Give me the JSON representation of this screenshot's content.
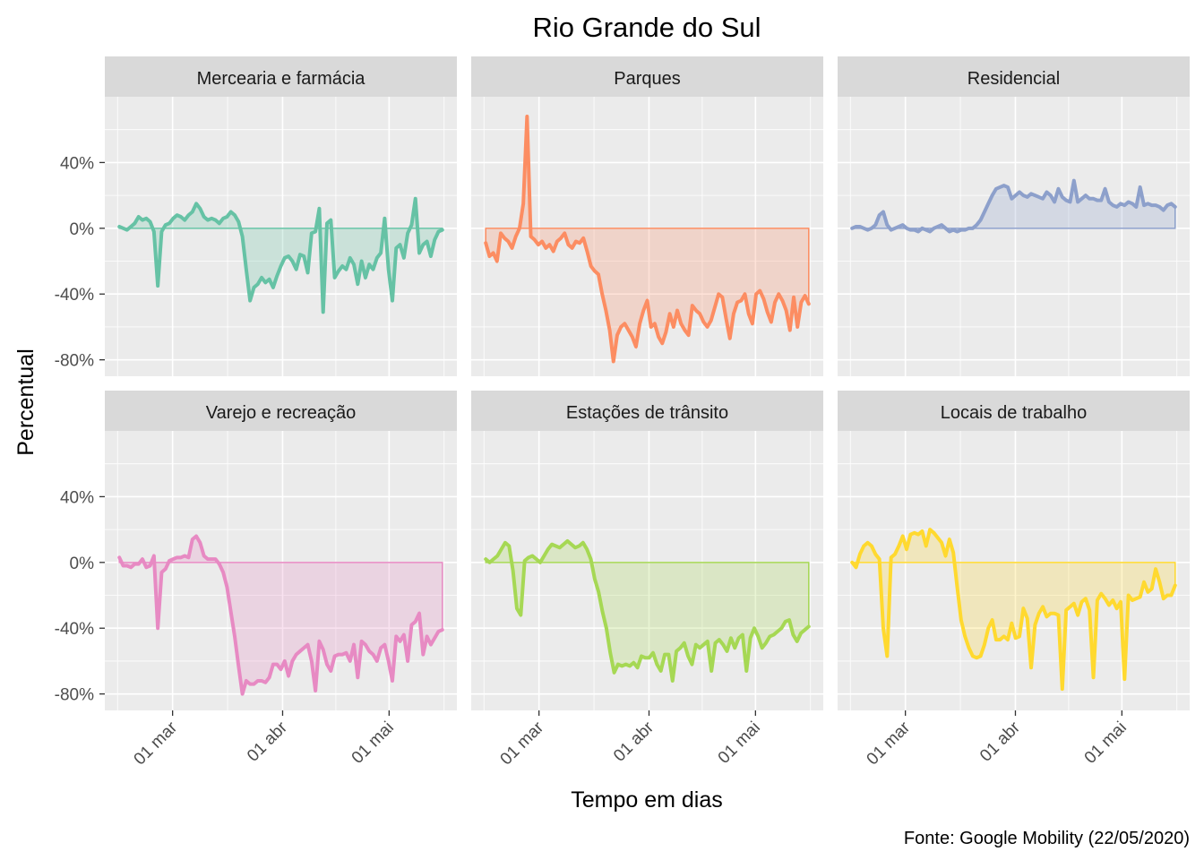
{
  "chart_data": {
    "type": "area",
    "title": "Rio Grande do Sul",
    "xlabel": "Tempo em dias",
    "ylabel": "Percentual",
    "caption": "Fonte: Google Mobility (22/05/2020)",
    "x_start": "2020-02-15",
    "x_end": "2020-05-16",
    "x_tick_labels": [
      "01 mar",
      "01 abr",
      "01 mai"
    ],
    "x_tick_dates": [
      "2020-03-01",
      "2020-04-01",
      "2020-05-01"
    ],
    "ylim": [
      -90,
      80
    ],
    "y_ticks": [
      40,
      0,
      -40,
      -80
    ],
    "y_tick_labels": [
      "40%",
      "0%",
      "-40%",
      "-80%"
    ],
    "grid": true,
    "legend": "none",
    "panels": [
      {
        "name": "Mercearia e farmácia",
        "color": "#66c2a5",
        "values": [
          1,
          0,
          -1,
          1,
          3,
          7,
          5,
          6,
          4,
          -2,
          -35,
          -2,
          2,
          3,
          6,
          8,
          7,
          5,
          8,
          10,
          15,
          12,
          7,
          5,
          6,
          5,
          3,
          6,
          7,
          10,
          8,
          4,
          -5,
          -25,
          -44,
          -36,
          -34,
          -30,
          -33,
          -31,
          -36,
          -29,
          -23,
          -18,
          -17,
          -20,
          -25,
          -16,
          -17,
          -27,
          -3,
          -2,
          12,
          -51,
          3,
          5,
          -30,
          -26,
          -23,
          -25,
          -18,
          -22,
          -34,
          -20,
          -30,
          -22,
          -25,
          -18,
          -15,
          6,
          -25,
          -44,
          -12,
          -10,
          -18,
          -3,
          2,
          18,
          -15,
          -10,
          -8,
          -17,
          -7,
          -2,
          -1
        ]
      },
      {
        "name": "Parques",
        "color": "#fc8d62",
        "values": [
          -9,
          -17,
          -15,
          -20,
          -3,
          -6,
          -8,
          -12,
          -5,
          0,
          15,
          68,
          -5,
          -7,
          -10,
          -8,
          -12,
          -10,
          -14,
          -8,
          -6,
          -3,
          -10,
          -12,
          -8,
          -9,
          -6,
          -14,
          -23,
          -26,
          -28,
          -40,
          -50,
          -62,
          -81,
          -65,
          -60,
          -58,
          -62,
          -66,
          -72,
          -58,
          -50,
          -44,
          -60,
          -58,
          -66,
          -70,
          -63,
          -52,
          -60,
          -50,
          -58,
          -62,
          -65,
          -47,
          -50,
          -52,
          -57,
          -60,
          -56,
          -48,
          -40,
          -42,
          -55,
          -67,
          -52,
          -45,
          -44,
          -40,
          -52,
          -58,
          -40,
          -38,
          -43,
          -51,
          -57,
          -45,
          -40,
          -44,
          -50,
          -62,
          -42,
          -60,
          -45,
          -41,
          -46
        ]
      },
      {
        "name": "Residencial",
        "color": "#8da0cb",
        "values": [
          0,
          1,
          1,
          0,
          -1,
          0,
          2,
          8,
          10,
          2,
          -1,
          0,
          1,
          2,
          0,
          -1,
          -1,
          -2,
          0,
          -1,
          -2,
          0,
          1,
          2,
          0,
          -2,
          -1,
          -2,
          -1,
          -1,
          0,
          0,
          2,
          5,
          10,
          15,
          20,
          24,
          25,
          26,
          25,
          18,
          20,
          22,
          20,
          19,
          21,
          20,
          19,
          18,
          22,
          20,
          16,
          24,
          19,
          17,
          16,
          29,
          16,
          18,
          20,
          18,
          18,
          17,
          17,
          24,
          16,
          14,
          13,
          15,
          14,
          16,
          15,
          13,
          25,
          14,
          15,
          14,
          14,
          13,
          11,
          14,
          15,
          13
        ]
      },
      {
        "name": "Varejo e recreação",
        "color": "#e78ac3",
        "values": [
          3,
          -2,
          -2,
          -3,
          -1,
          -1,
          2,
          -3,
          -2,
          4,
          -40,
          -6,
          -4,
          1,
          2,
          3,
          3,
          4,
          3,
          14,
          16,
          12,
          4,
          2,
          2,
          2,
          -1,
          -6,
          -15,
          -30,
          -45,
          -63,
          -80,
          -72,
          -74,
          -74,
          -72,
          -72,
          -73,
          -70,
          -62,
          -62,
          -65,
          -60,
          -69,
          -60,
          -56,
          -54,
          -52,
          -50,
          -60,
          -78,
          -48,
          -53,
          -62,
          -66,
          -57,
          -56,
          -56,
          -55,
          -60,
          -50,
          -70,
          -48,
          -50,
          -54,
          -56,
          -60,
          -52,
          -50,
          -60,
          -72,
          -45,
          -48,
          -44,
          -60,
          -38,
          -36,
          -31,
          -56,
          -45,
          -50,
          -46,
          -42,
          -41
        ]
      },
      {
        "name": "Estações de trânsito",
        "color": "#a6d854",
        "values": [
          2,
          0,
          2,
          4,
          8,
          12,
          10,
          -5,
          -28,
          -32,
          1,
          3,
          4,
          2,
          0,
          4,
          8,
          11,
          10,
          9,
          11,
          13,
          11,
          9,
          10,
          12,
          8,
          2,
          -10,
          -18,
          -30,
          -40,
          -55,
          -67,
          -62,
          -63,
          -62,
          -63,
          -61,
          -64,
          -57,
          -58,
          -58,
          -55,
          -62,
          -66,
          -56,
          -56,
          -72,
          -54,
          -52,
          -49,
          -57,
          -62,
          -50,
          -52,
          -50,
          -48,
          -66,
          -49,
          -47,
          -50,
          -54,
          -46,
          -52,
          -46,
          -44,
          -66,
          -46,
          -40,
          -45,
          -52,
          -49,
          -45,
          -44,
          -42,
          -40,
          -36,
          -35,
          -44,
          -48,
          -43,
          -41,
          -39
        ]
      },
      {
        "name": "Locais de trabalho",
        "color": "#ffd92f",
        "values": [
          0,
          -3,
          5,
          10,
          12,
          10,
          5,
          2,
          -40,
          -57,
          3,
          5,
          10,
          16,
          8,
          17,
          18,
          17,
          19,
          10,
          20,
          18,
          15,
          12,
          4,
          14,
          6,
          -15,
          -35,
          -45,
          -52,
          -57,
          -58,
          -57,
          -50,
          -40,
          -35,
          -47,
          -47,
          -45,
          -47,
          -37,
          -46,
          -45,
          -28,
          -34,
          -64,
          -38,
          -31,
          -27,
          -33,
          -31,
          -31,
          -32,
          -77,
          -29,
          -27,
          -25,
          -32,
          -24,
          -22,
          -29,
          -70,
          -23,
          -19,
          -22,
          -26,
          -23,
          -28,
          -24,
          -71,
          -20,
          -23,
          -22,
          -21,
          -12,
          -18,
          -16,
          -4,
          -12,
          -22,
          -20,
          -20,
          -14
        ]
      }
    ]
  }
}
